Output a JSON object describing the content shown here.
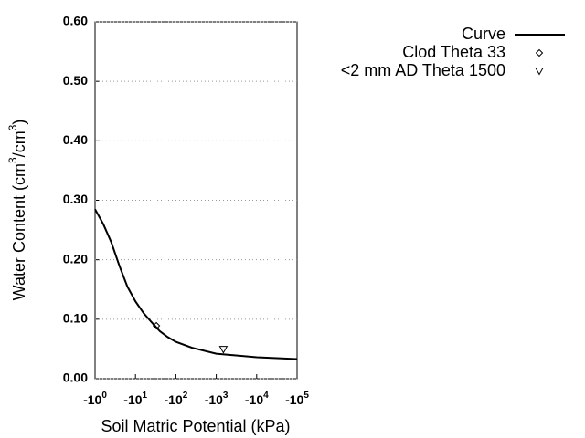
{
  "chart_data": {
    "type": "line",
    "xlabel": "Soil Matric Potential (kPa)",
    "ylabel": [
      "Water Content (cm",
      "3",
      "/cm",
      "3",
      ")"
    ],
    "xscale": "log",
    "xlim": [
      1,
      100000
    ],
    "xticks": [
      {
        "value": 1,
        "label": "-10",
        "sup": "0"
      },
      {
        "value": 10,
        "label": "-10",
        "sup": "1"
      },
      {
        "value": 100,
        "label": "-10",
        "sup": "2"
      },
      {
        "value": 1000,
        "label": "-10",
        "sup": "3"
      },
      {
        "value": 10000,
        "label": "-10",
        "sup": "4"
      },
      {
        "value": 100000,
        "label": "-10",
        "sup": "5"
      }
    ],
    "ylim": [
      0,
      0.6
    ],
    "yticks": [
      {
        "value": 0,
        "label": "0.00"
      },
      {
        "value": 0.1,
        "label": "0.10"
      },
      {
        "value": 0.2,
        "label": "0.20"
      },
      {
        "value": 0.3,
        "label": "0.30"
      },
      {
        "value": 0.4,
        "label": "0.40"
      },
      {
        "value": 0.5,
        "label": "0.50"
      },
      {
        "value": 0.6,
        "label": "0.60"
      }
    ],
    "grid": true,
    "series": [
      {
        "name": "Curve",
        "type": "line",
        "color": "#000000",
        "x": [
          1,
          1.6,
          2.5,
          4,
          6.3,
          10,
          16,
          25,
          40,
          63,
          100,
          250,
          1000,
          10000,
          100000
        ],
        "values": [
          0.285,
          0.26,
          0.23,
          0.19,
          0.155,
          0.13,
          0.11,
          0.095,
          0.08,
          0.07,
          0.062,
          0.052,
          0.042,
          0.036,
          0.033
        ]
      },
      {
        "name": "Clod Theta 33",
        "type": "scatter",
        "marker": "diamond",
        "color": "#000000",
        "x": [
          33
        ],
        "values": [
          0.089
        ]
      },
      {
        "name": "<2 mm AD Theta 1500",
        "type": "scatter",
        "marker": "triangle-down",
        "color": "#000000",
        "x": [
          1500
        ],
        "values": [
          0.049
        ]
      }
    ]
  }
}
